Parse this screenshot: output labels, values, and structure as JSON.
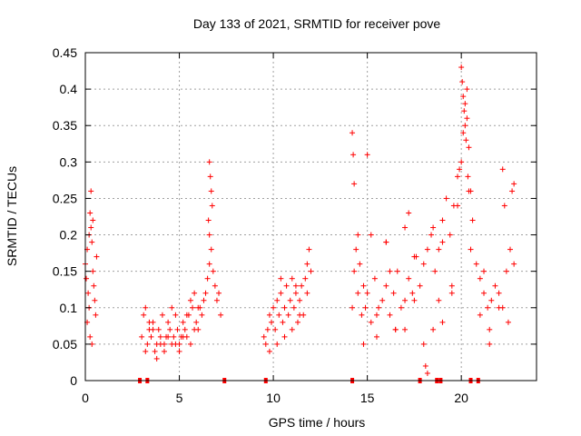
{
  "chart_data": {
    "type": "scatter",
    "title": "Day 133 of 2021, SRMTID for receiver pove",
    "xlabel": "GPS time / hours",
    "ylabel": "SRMTID / TECUs",
    "xlim": [
      0,
      24
    ],
    "ylim": [
      0,
      0.45
    ],
    "xticks": [
      0,
      5,
      10,
      15,
      20
    ],
    "xtick_labels": [
      "0",
      "5",
      "10",
      "15",
      "20"
    ],
    "yticks": [
      0,
      0.05,
      0.1,
      0.15,
      0.2,
      0.25,
      0.3,
      0.35,
      0.4,
      0.45
    ],
    "ytick_labels": [
      "0",
      "0.05",
      "0.1",
      "0.15",
      "0.2",
      "0.25",
      "0.3",
      "0.35",
      "0.4",
      "0.45"
    ],
    "grid": true,
    "marker": "+",
    "color": "#ff0000",
    "series": [
      {
        "name": "SRMTID",
        "x": [
          0.0,
          0.05,
          0.1,
          0.15,
          0.2,
          0.25,
          0.3,
          0.35,
          0.4,
          0.45,
          0.5,
          0.55,
          0.6,
          0.1,
          0.2,
          0.3,
          0.4,
          0.25,
          0.35,
          3.0,
          3.1,
          3.2,
          3.3,
          3.4,
          3.5,
          3.6,
          3.7,
          3.8,
          3.9,
          4.0,
          4.1,
          4.2,
          4.3,
          4.4,
          4.5,
          4.6,
          4.7,
          4.8,
          4.9,
          5.0,
          5.1,
          5.2,
          5.3,
          5.4,
          5.5,
          5.6,
          5.7,
          5.8,
          5.9,
          6.0,
          6.1,
          6.2,
          6.3,
          6.4,
          6.5,
          6.6,
          6.7,
          6.8,
          6.9,
          7.0,
          7.1,
          7.2,
          6.6,
          6.65,
          6.7,
          6.55,
          6.75,
          6.6,
          3.2,
          3.4,
          3.6,
          3.8,
          4.0,
          4.2,
          4.4,
          4.6,
          4.8,
          5.0,
          5.2,
          5.4,
          5.6,
          5.8,
          6.0,
          9.5,
          9.6,
          9.7,
          9.8,
          9.9,
          10.0,
          10.1,
          10.2,
          10.3,
          10.4,
          10.5,
          10.6,
          10.7,
          10.8,
          10.9,
          11.0,
          11.1,
          11.2,
          11.3,
          11.4,
          11.5,
          11.6,
          11.7,
          11.8,
          11.9,
          12.0,
          9.8,
          10.2,
          10.6,
          11.0,
          11.4,
          11.8,
          10.4,
          11.2,
          14.2,
          14.3,
          14.4,
          14.5,
          14.6,
          14.7,
          14.8,
          14.9,
          15.0,
          15.2,
          15.4,
          15.6,
          15.8,
          16.0,
          16.2,
          16.4,
          16.6,
          16.8,
          17.0,
          17.2,
          17.4,
          17.6,
          17.8,
          18.0,
          18.2,
          18.4,
          18.6,
          18.8,
          19.0,
          19.2,
          19.4,
          19.6,
          19.8,
          20.0,
          20.1,
          20.2,
          20.3,
          20.4,
          20.5,
          20.6,
          20.8,
          21.0,
          21.2,
          21.4,
          21.6,
          21.8,
          22.0,
          22.2,
          22.4,
          22.6,
          22.8,
          14.2,
          14.25,
          14.3,
          14.5,
          15.0,
          15.5,
          16.0,
          16.5,
          17.0,
          17.5,
          18.0,
          18.1,
          18.2,
          18.5,
          19.0,
          19.5,
          19.9,
          20.0,
          20.05,
          20.1,
          20.15,
          20.2,
          20.25,
          20.3,
          20.35,
          20.4,
          21.0,
          21.5,
          22.0,
          22.3,
          22.5,
          22.7,
          22.8,
          15.5,
          16.5,
          17.5,
          18.5,
          19.5,
          20.5,
          21.5,
          16.0,
          17.0,
          19.0,
          14.8,
          15.2,
          16.2,
          17.2,
          18.8,
          19.8,
          21.2,
          22.2
        ],
        "y": [
          0.16,
          0.14,
          0.18,
          0.12,
          0.2,
          0.23,
          0.26,
          0.19,
          0.15,
          0.13,
          0.11,
          0.09,
          0.17,
          0.08,
          0.1,
          0.21,
          0.22,
          0.06,
          0.05,
          0.06,
          0.09,
          0.1,
          0.05,
          0.07,
          0.06,
          0.08,
          0.04,
          0.05,
          0.07,
          0.06,
          0.09,
          0.05,
          0.06,
          0.08,
          0.07,
          0.05,
          0.06,
          0.09,
          0.07,
          0.05,
          0.06,
          0.08,
          0.07,
          0.06,
          0.09,
          0.11,
          0.1,
          0.12,
          0.08,
          0.07,
          0.1,
          0.09,
          0.11,
          0.12,
          0.14,
          0.16,
          0.18,
          0.15,
          0.13,
          0.11,
          0.12,
          0.09,
          0.3,
          0.28,
          0.26,
          0.22,
          0.24,
          0.2,
          0.04,
          0.08,
          0.07,
          0.03,
          0.05,
          0.04,
          0.06,
          0.1,
          0.05,
          0.04,
          0.06,
          0.09,
          0.05,
          0.07,
          0.1,
          0.06,
          0.05,
          0.07,
          0.09,
          0.08,
          0.1,
          0.07,
          0.11,
          0.09,
          0.12,
          0.08,
          0.1,
          0.13,
          0.09,
          0.11,
          0.14,
          0.1,
          0.12,
          0.08,
          0.11,
          0.13,
          0.09,
          0.14,
          0.16,
          0.18,
          0.15,
          0.04,
          0.05,
          0.06,
          0.07,
          0.09,
          0.12,
          0.14,
          0.13,
          0.1,
          0.15,
          0.18,
          0.12,
          0.16,
          0.09,
          0.13,
          0.1,
          0.12,
          0.08,
          0.14,
          0.1,
          0.11,
          0.13,
          0.09,
          0.12,
          0.15,
          0.1,
          0.11,
          0.14,
          0.12,
          0.17,
          0.13,
          0.16,
          0.18,
          0.2,
          0.15,
          0.18,
          0.22,
          0.25,
          0.2,
          0.24,
          0.28,
          0.3,
          0.34,
          0.38,
          0.4,
          0.32,
          0.26,
          0.22,
          0.16,
          0.14,
          0.12,
          0.1,
          0.11,
          0.13,
          0.12,
          0.1,
          0.15,
          0.18,
          0.16,
          0.34,
          0.31,
          0.27,
          0.2,
          0.31,
          0.09,
          0.19,
          0.07,
          0.21,
          0.11,
          0.05,
          0.02,
          0.01,
          0.07,
          0.19,
          0.13,
          0.29,
          0.43,
          0.41,
          0.39,
          0.37,
          0.35,
          0.33,
          0.36,
          0.28,
          0.26,
          0.09,
          0.07,
          0.1,
          0.24,
          0.08,
          0.26,
          0.27,
          0.06,
          0.07,
          0.17,
          0.21,
          0.12,
          0.18,
          0.05,
          0.19,
          0.07,
          0.08,
          0.05,
          0.2,
          0.15,
          0.23,
          0.11,
          0.24,
          0.15,
          0.29
        ]
      }
    ],
    "zero_markers_x": [
      2.9,
      3.3,
      7.4,
      9.6,
      14.2,
      17.8,
      18.7,
      18.9,
      20.5,
      20.9
    ]
  }
}
